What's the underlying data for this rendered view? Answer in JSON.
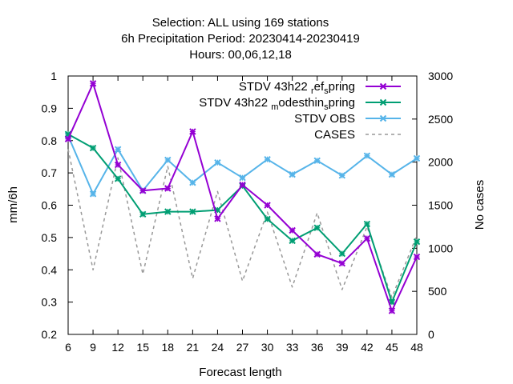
{
  "chart_data": {
    "type": "line",
    "title_lines": [
      "Selection: ALL using   169 stations",
      "6h Precipitation   Period: 20230414-20230419",
      "Hours:  00,06,12,18"
    ],
    "xlabel": "Forecast length",
    "ylabel": "mm/6h",
    "y2label": "No cases",
    "x": [
      6,
      9,
      12,
      15,
      18,
      21,
      24,
      27,
      30,
      33,
      36,
      39,
      42,
      45,
      48
    ],
    "xlim": [
      6,
      48
    ],
    "ylim": [
      0.2,
      1.0
    ],
    "y2lim": [
      0,
      3000
    ],
    "yticks": [
      "0.2",
      "0.3",
      "0.4",
      "0.5",
      "0.6",
      "0.7",
      "0.8",
      "0.9",
      "1"
    ],
    "y2ticks": [
      "0",
      "500",
      "1000",
      "1500",
      "2000",
      "2500",
      "3000"
    ],
    "xticks": [
      "6",
      "9",
      "12",
      "15",
      "18",
      "21",
      "24",
      "27",
      "30",
      "33",
      "36",
      "39",
      "42",
      "45",
      "48"
    ],
    "legend_position": "top-right",
    "grid": false,
    "series": [
      {
        "name": "STDV 43h22 ref spring",
        "name_parts": {
          "pre": "STDV 43h22 ",
          "sub1": "r",
          "mid": "ef",
          "sub2": "s",
          "post": "pring"
        },
        "color": "#9400d3",
        "marker": "x",
        "axis": "y",
        "values": [
          0.805,
          0.977,
          0.725,
          0.645,
          0.652,
          0.828,
          0.558,
          0.663,
          0.6,
          0.522,
          0.448,
          0.42,
          0.497,
          0.273,
          0.44
        ]
      },
      {
        "name": "STDV 43h22 modesthin spring",
        "name_parts": {
          "pre": "STDV 43h22 ",
          "sub1": "m",
          "mid": "odesthin",
          "sub2": "s",
          "post": "pring"
        },
        "color": "#009e73",
        "marker": "x",
        "axis": "y",
        "values": [
          0.82,
          0.777,
          0.682,
          0.572,
          0.58,
          0.58,
          0.585,
          0.66,
          0.557,
          0.49,
          0.53,
          0.45,
          0.542,
          0.3,
          0.487
        ]
      },
      {
        "name": "STDV OBS",
        "color": "#56b4e9",
        "marker": "x",
        "axis": "y",
        "values": [
          0.815,
          0.635,
          0.773,
          0.645,
          0.74,
          0.67,
          0.732,
          0.685,
          0.742,
          0.695,
          0.738,
          0.692,
          0.753,
          0.695,
          0.745
        ]
      },
      {
        "name": "CASES",
        "color": "#999999",
        "dashed": true,
        "axis": "y2",
        "values": [
          2150,
          750,
          2050,
          700,
          1950,
          650,
          1660,
          620,
          1420,
          550,
          1410,
          520,
          1250,
          430,
          1150
        ]
      }
    ]
  }
}
